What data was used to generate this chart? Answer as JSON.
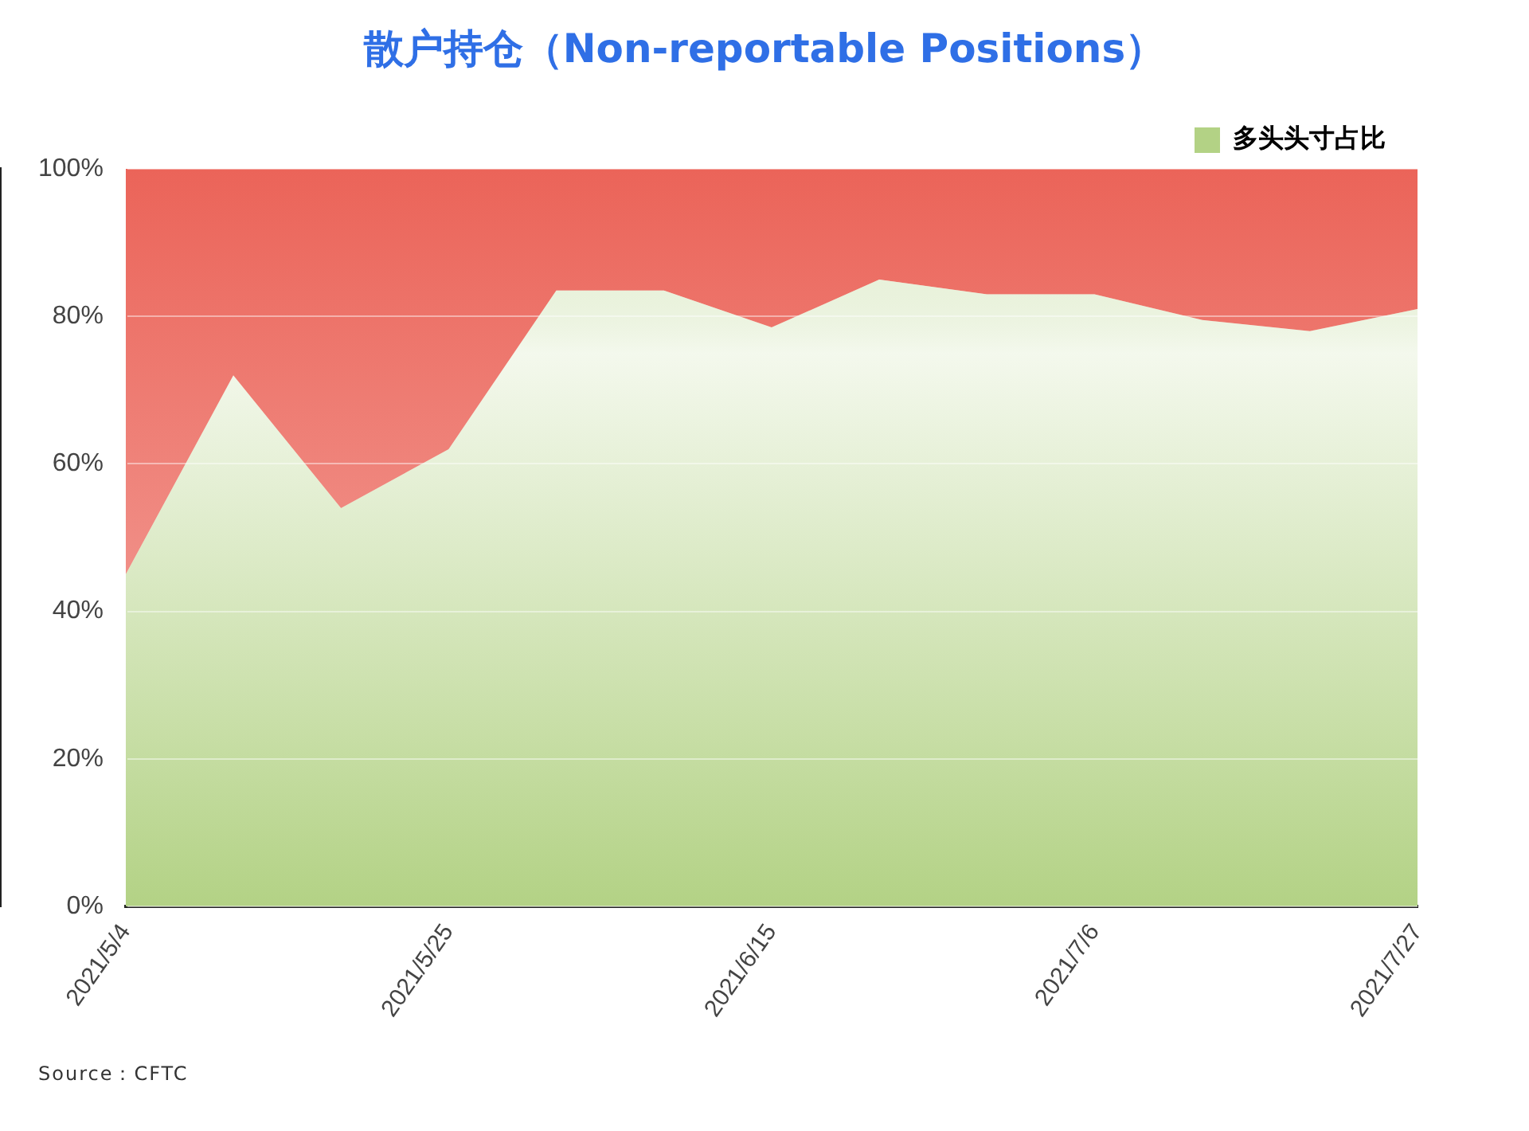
{
  "chart_data": {
    "type": "area",
    "title": "散户持仓（Non-reportable Positions）",
    "stacked": true,
    "categories": [
      "2021/5/4",
      null,
      null,
      "2021/5/25",
      null,
      null,
      "2021/6/15",
      null,
      null,
      "2021/7/6",
      null,
      null,
      "2021/7/27"
    ],
    "series": [
      {
        "name": "多头头寸占比",
        "color": "#b3d285",
        "values": [
          45,
          72,
          54,
          62,
          83.5,
          83.5,
          78.5,
          85,
          83,
          83,
          79.5,
          78,
          81
        ]
      },
      {
        "color": "#eb6459",
        "values": [
          55,
          28,
          46,
          38,
          16.5,
          16.5,
          21.5,
          15,
          17,
          17,
          20.5,
          22,
          19
        ]
      }
    ],
    "ylim": [
      0,
      100
    ],
    "yticks": [
      {
        "value": 0,
        "label": "0%"
      },
      {
        "value": 20,
        "label": "20%"
      },
      {
        "value": 40,
        "label": "40%"
      },
      {
        "value": 60,
        "label": "60%"
      },
      {
        "value": 80,
        "label": "80%"
      },
      {
        "value": 100,
        "label": "100%"
      }
    ],
    "grid": "y",
    "legend": "top right",
    "marker": "none",
    "annotations": [
      "Source：CFTC"
    ]
  }
}
